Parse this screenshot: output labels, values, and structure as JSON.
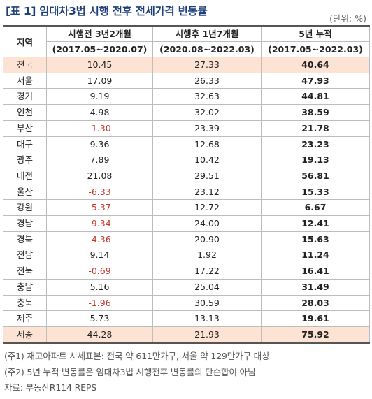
{
  "title": "[표 1] 임대차3법 시행 전후 전세가격 변동률",
  "unit": "(단위: %)",
  "headers": {
    "region": "지역",
    "before_label": "시행전 3년2개월",
    "before_period": "(2017.05~2020.07)",
    "after_label": "시행후 1년7개월",
    "after_period": "(2020.08~2022.03)",
    "total_label": "5년 누적",
    "total_period": "(2017.05~2022.03)"
  },
  "rows": [
    {
      "region": "전국",
      "before": "10.45",
      "after": "27.33",
      "total": "40.64"
    },
    {
      "region": "서울",
      "before": "17.09",
      "after": "26.33",
      "total": "47.93"
    },
    {
      "region": "경기",
      "before": "9.19",
      "after": "32.63",
      "total": "44.81"
    },
    {
      "region": "인천",
      "before": "4.98",
      "after": "32.02",
      "total": "38.59"
    },
    {
      "region": "부산",
      "before": "-1.30",
      "after": "23.39",
      "total": "21.78"
    },
    {
      "region": "대구",
      "before": "9.36",
      "after": "12.68",
      "total": "23.23"
    },
    {
      "region": "광주",
      "before": "7.89",
      "after": "10.42",
      "total": "19.13"
    },
    {
      "region": "대전",
      "before": "21.08",
      "after": "29.51",
      "total": "56.81"
    },
    {
      "region": "울산",
      "before": "-6.33",
      "after": "23.12",
      "total": "15.33"
    },
    {
      "region": "강원",
      "before": "-5.37",
      "after": "12.72",
      "total": "6.67"
    },
    {
      "region": "경남",
      "before": "-9.34",
      "after": "24.00",
      "total": "12.41"
    },
    {
      "region": "경북",
      "before": "-4.36",
      "after": "20.90",
      "total": "15.63"
    },
    {
      "region": "전남",
      "before": "9.14",
      "after": "1.92",
      "total": "11.24"
    },
    {
      "region": "전북",
      "before": "-0.69",
      "after": "17.22",
      "total": "16.41"
    },
    {
      "region": "충남",
      "before": "5.16",
      "after": "25.04",
      "total": "31.49"
    },
    {
      "region": "충북",
      "before": "-1.96",
      "after": "30.59",
      "total": "28.03"
    },
    {
      "region": "제주",
      "before": "5.73",
      "after": "13.13",
      "total": "19.61"
    },
    {
      "region": "세종",
      "before": "44.28",
      "after": "21.93",
      "total": "75.92"
    }
  ],
  "notes": [
    "(주1) 재고아파트 시세표본: 전국 약 611만가구, 서울 약 129만가구 대상",
    "(주2) 5년 누적 변동률은 임대차3법 시행전후 변동률의 단순합이 아님",
    "자료: 부동산R114 REPS"
  ],
  "colors": {
    "title": "#1f3f7a",
    "negative": "#c0392b",
    "highlight_row": "#fde3d3"
  }
}
